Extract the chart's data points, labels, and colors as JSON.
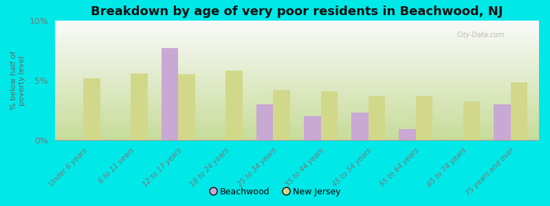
{
  "title": "Breakdown by age of very poor residents in Beachwood, NJ",
  "ylabel": "% below half of\npoverty level",
  "categories": [
    "Under 6 years",
    "6 to 11 years",
    "12 to 17 years",
    "18 to 24 years",
    "25 to 34 years",
    "35 to 44 years",
    "45 to 54 years",
    "55 to 64 years",
    "65 to 74 years",
    "75 years and over"
  ],
  "beachwood_values": [
    0,
    0,
    7.7,
    0,
    3.0,
    2.0,
    2.3,
    0.9,
    0,
    3.0
  ],
  "nj_values": [
    5.2,
    5.6,
    5.5,
    5.8,
    4.2,
    4.1,
    3.7,
    3.7,
    3.2,
    4.8
  ],
  "beachwood_color": "#c9a8d4",
  "nj_color": "#d2d88a",
  "background_color": "#00e8e8",
  "plot_bg_bottom": "#c8dca0",
  "plot_bg_top": "#f8f8f8",
  "ylim": [
    0,
    10
  ],
  "yticks": [
    0,
    5,
    10
  ],
  "ytick_labels": [
    "0%",
    "5%",
    "10%"
  ],
  "bar_width": 0.35,
  "title_fontsize": 13,
  "axis_label_color": "#666666",
  "tick_label_color": "#777777",
  "legend_beachwood": "Beachwood",
  "legend_nj": "New Jersey",
  "watermark": "City-Data.com"
}
